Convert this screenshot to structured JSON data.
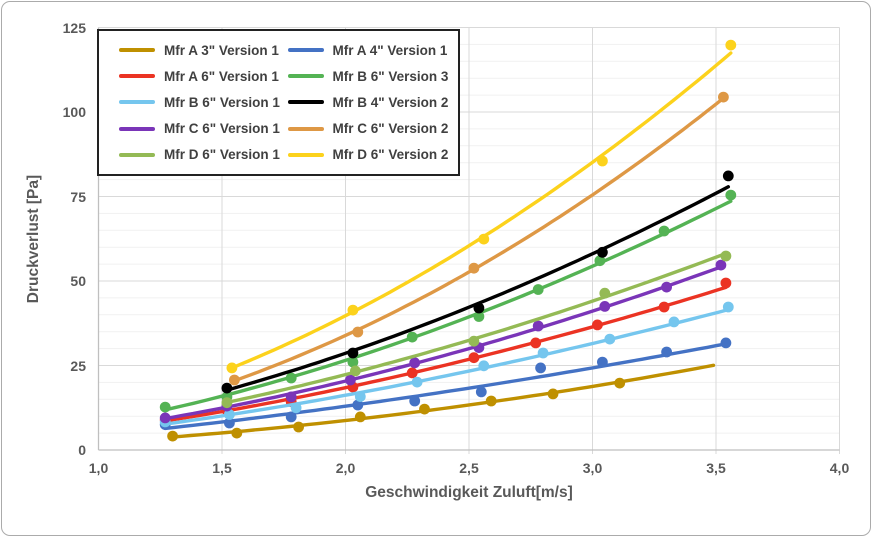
{
  "figure": {
    "background": "#ffffff",
    "border_color": "#ababab"
  },
  "chart_data": {
    "type": "scatter",
    "title": "",
    "xlabel": "Geschwindigkeit Zuluft[m/s]",
    "ylabel": "Druckverlust [Pa]",
    "xlim": [
      1.0,
      4.0
    ],
    "ylim": [
      0,
      125
    ],
    "x_ticks": [
      1.0,
      1.5,
      2.0,
      2.5,
      3.0,
      3.5,
      4.0
    ],
    "x_tick_labels": [
      "1,0",
      "1,5",
      "2,0",
      "2,5",
      "3,0",
      "3,5",
      "4,0"
    ],
    "y_ticks": [
      0,
      25,
      50,
      75,
      100,
      125
    ],
    "y_tick_labels": [
      "0",
      "25",
      "50",
      "75",
      "100",
      "125"
    ],
    "grid": {
      "vertical_step": 0.5,
      "horizontal_major_step": 25,
      "horizontal_minor_step": 5,
      "major_color": "#d9d9d9",
      "minor_color": "#f1f1f1",
      "axis_color": "#bfbfbf"
    },
    "legend_position": "top-left",
    "line_style": "smooth power trendline with round markers",
    "series": [
      {
        "name": "Mfr A 3\" Version 1",
        "color": "#BF9000",
        "points": [
          [
            1.3,
            4.1
          ],
          [
            1.56,
            5.0
          ],
          [
            1.81,
            6.8
          ],
          [
            2.06,
            9.8
          ],
          [
            2.32,
            12.1
          ],
          [
            2.59,
            14.5
          ],
          [
            2.84,
            16.6
          ],
          [
            3.11,
            19.8
          ]
        ],
        "line_to": 3.49
      },
      {
        "name": "Mfr A 4\" Version 1",
        "color": "#4472C4",
        "points": [
          [
            1.27,
            7.5
          ],
          [
            1.53,
            8.0
          ],
          [
            1.78,
            9.8
          ],
          [
            2.05,
            13.3
          ],
          [
            2.28,
            14.5
          ],
          [
            2.55,
            17.2
          ],
          [
            2.79,
            24.3
          ],
          [
            3.04,
            26.0
          ],
          [
            3.3,
            29.0
          ],
          [
            3.54,
            31.7
          ]
        ]
      },
      {
        "name": "Mfr A 6\" Version 1",
        "color": "#EB3323",
        "points": [
          [
            1.27,
            8.9
          ],
          [
            1.52,
            11.8
          ],
          [
            1.78,
            14.3
          ],
          [
            2.03,
            18.6
          ],
          [
            2.27,
            22.8
          ],
          [
            2.52,
            27.3
          ],
          [
            2.77,
            31.7
          ],
          [
            3.02,
            37.0
          ],
          [
            3.29,
            42.3
          ],
          [
            3.54,
            49.4
          ]
        ]
      },
      {
        "name": "Mfr B 6\" Version 3",
        "color": "#54B354",
        "points": [
          [
            1.27,
            12.7
          ],
          [
            1.52,
            15.7
          ],
          [
            1.78,
            21.3
          ],
          [
            2.03,
            26.0
          ],
          [
            2.27,
            33.4
          ],
          [
            2.54,
            39.5
          ],
          [
            2.78,
            47.5
          ],
          [
            3.03,
            56.0
          ],
          [
            3.29,
            64.8
          ],
          [
            3.56,
            75.4
          ]
        ]
      },
      {
        "name": "Mfr B 6\" Version 1",
        "color": "#75C6EE",
        "points": [
          [
            1.27,
            8.3
          ],
          [
            1.53,
            10.5
          ],
          [
            1.8,
            12.5
          ],
          [
            2.06,
            15.8
          ],
          [
            2.29,
            20.1
          ],
          [
            2.56,
            24.9
          ],
          [
            2.8,
            28.7
          ],
          [
            3.07,
            32.8
          ],
          [
            3.33,
            37.9
          ],
          [
            3.55,
            42.3
          ]
        ]
      },
      {
        "name": "Mfr B 4\" Version 2",
        "color": "#000000",
        "points": [
          [
            1.52,
            18.3
          ],
          [
            2.03,
            28.7
          ],
          [
            2.54,
            42.0
          ],
          [
            3.04,
            58.5
          ],
          [
            3.55,
            81.1
          ]
        ]
      },
      {
        "name": "Mfr C 6\" Version 1",
        "color": "#7A35B8",
        "points": [
          [
            1.27,
            9.5
          ],
          [
            1.52,
            13.0
          ],
          [
            1.78,
            15.7
          ],
          [
            2.02,
            20.7
          ],
          [
            2.28,
            25.8
          ],
          [
            2.54,
            30.3
          ],
          [
            2.78,
            36.7
          ],
          [
            3.05,
            42.5
          ],
          [
            3.3,
            48.2
          ],
          [
            3.52,
            54.7
          ]
        ]
      },
      {
        "name": "Mfr C 6\" Version 2",
        "color": "#DE9845",
        "points": [
          [
            1.55,
            20.7
          ],
          [
            2.05,
            34.9
          ],
          [
            2.52,
            53.8
          ],
          [
            3.53,
            104.4
          ]
        ]
      },
      {
        "name": "Mfr D 6\" Version 1",
        "color": "#94BA55",
        "points": [
          [
            1.52,
            14.0
          ],
          [
            2.04,
            23.4
          ],
          [
            2.52,
            32.2
          ],
          [
            3.05,
            46.4
          ],
          [
            3.54,
            57.4
          ]
        ]
      },
      {
        "name": "Mfr D 6\" Version 2",
        "color": "#FCD21C",
        "points": [
          [
            1.54,
            24.3
          ],
          [
            2.03,
            41.4
          ],
          [
            2.56,
            62.4
          ],
          [
            3.04,
            85.5
          ],
          [
            3.56,
            119.8
          ]
        ]
      }
    ]
  }
}
